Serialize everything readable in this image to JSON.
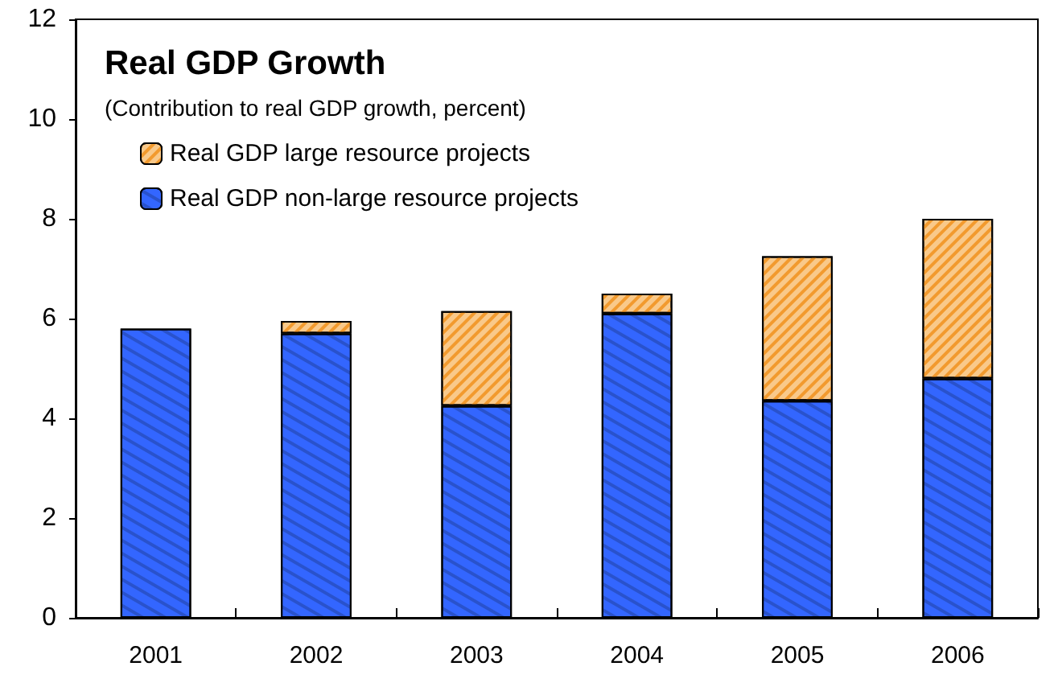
{
  "chart_data": {
    "type": "bar",
    "title": "Real GDP Growth",
    "subtitle": "(Contribution to real GDP growth, percent)",
    "categories": [
      "2001",
      "2002",
      "2003",
      "2004",
      "2005",
      "2006"
    ],
    "series": [
      {
        "name": "Real GDP non-large resource projects",
        "color": "#3366ff",
        "values": [
          5.8,
          5.7,
          4.25,
          6.1,
          4.35,
          4.8
        ]
      },
      {
        "name": "Real GDP large resource projects",
        "color": "#f9c98a",
        "values": [
          null,
          0.25,
          1.9,
          0.4,
          2.9,
          3.2
        ]
      }
    ],
    "stacked": true,
    "ylim": [
      0,
      12
    ],
    "yticks": [
      0,
      2,
      4,
      6,
      8,
      10,
      12
    ],
    "grid": false,
    "legend": "top left"
  }
}
